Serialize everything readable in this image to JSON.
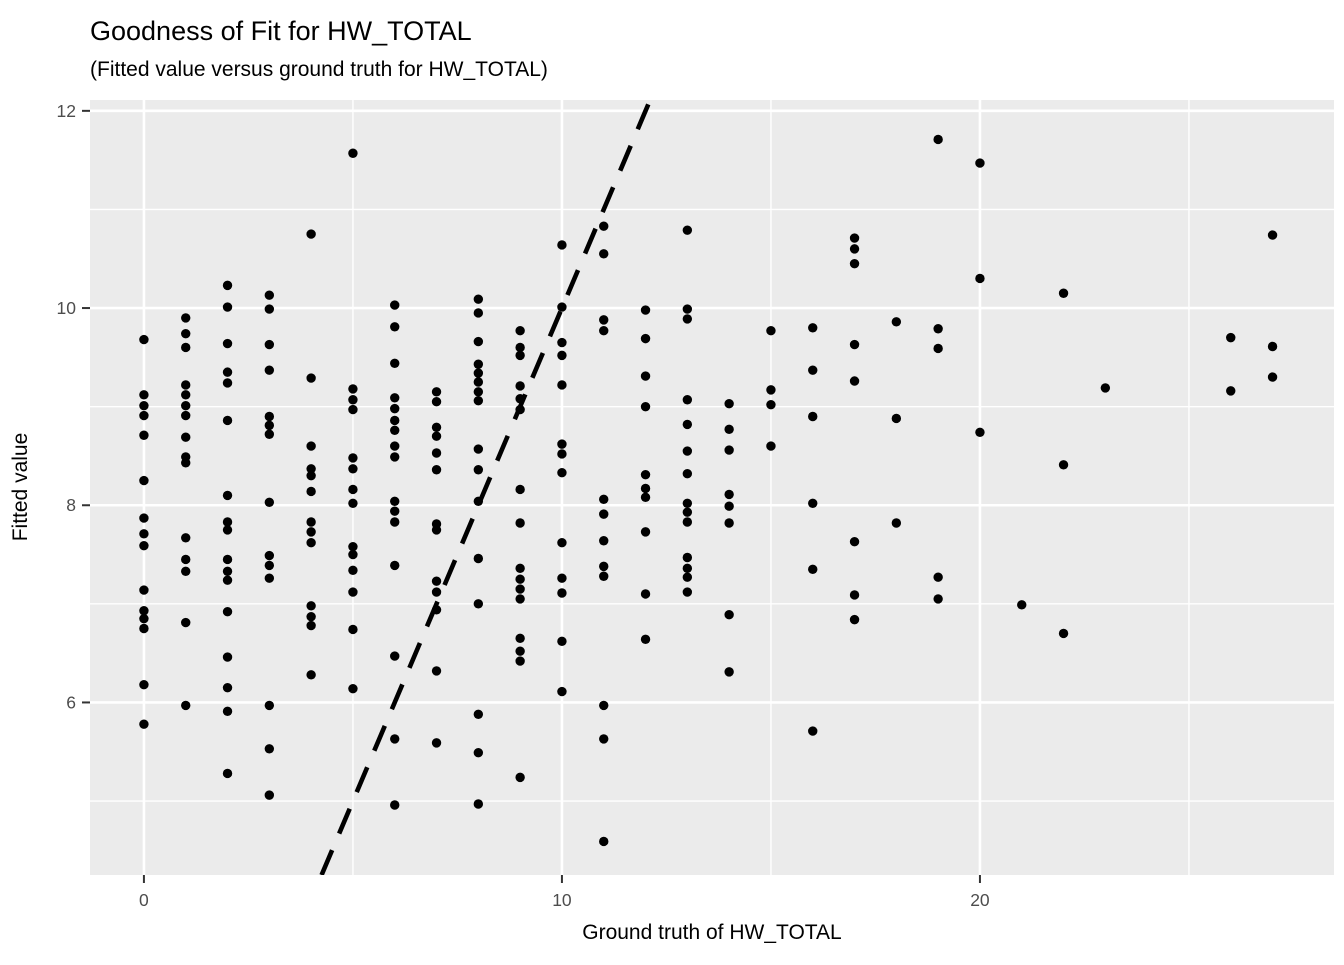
{
  "title": "Goodness of Fit for HW_TOTAL",
  "subtitle": "(Fitted value versus ground truth for HW_TOTAL)",
  "x_axis": {
    "label": "Ground truth of HW_TOTAL",
    "ticks": [
      0,
      10,
      20
    ],
    "minor_ticks": [
      5,
      15,
      25
    ],
    "range": [
      -1.29,
      28.47
    ]
  },
  "y_axis": {
    "label": "Fitted value",
    "ticks": [
      6,
      8,
      10,
      12
    ],
    "minor_ticks": [
      5,
      7,
      9,
      11
    ],
    "range": [
      4.25,
      12.11
    ]
  },
  "colors": {
    "panel_background": "#EBEBEB",
    "gridline": "#FFFFFF",
    "point": "#000000",
    "reference_line": "#000000",
    "tick_mark": "#333333",
    "tick_label": "#4d4d4d"
  },
  "chart_data": {
    "type": "scatter",
    "title": "Goodness of Fit for HW_TOTAL",
    "subtitle": "(Fitted value versus ground truth for HW_TOTAL)",
    "xlabel": "Ground truth of HW_TOTAL",
    "ylabel": "Fitted value",
    "xlim": [
      -1.29,
      28.47
    ],
    "ylim": [
      4.25,
      12.11
    ],
    "grid": "on",
    "legend": "none",
    "reference_line": {
      "equation": "y = x",
      "style": "dashed",
      "color": "#000000"
    },
    "points": [
      [
        0,
        9.68
      ],
      [
        0,
        9.12
      ],
      [
        0,
        9.01
      ],
      [
        0,
        8.91
      ],
      [
        0,
        8.71
      ],
      [
        0,
        8.25
      ],
      [
        0,
        7.87
      ],
      [
        0,
        7.71
      ],
      [
        0,
        7.59
      ],
      [
        0,
        7.14
      ],
      [
        0,
        6.93
      ],
      [
        0,
        6.85
      ],
      [
        0,
        6.75
      ],
      [
        0,
        6.18
      ],
      [
        0,
        5.78
      ],
      [
        1,
        9.9
      ],
      [
        1,
        9.74
      ],
      [
        1,
        9.6
      ],
      [
        1,
        9.22
      ],
      [
        1,
        9.12
      ],
      [
        1,
        9.01
      ],
      [
        1,
        8.91
      ],
      [
        1,
        8.69
      ],
      [
        1,
        8.49
      ],
      [
        1,
        8.43
      ],
      [
        1,
        7.67
      ],
      [
        1,
        7.45
      ],
      [
        1,
        7.33
      ],
      [
        1,
        6.81
      ],
      [
        1,
        5.97
      ],
      [
        2,
        10.23
      ],
      [
        2,
        10.01
      ],
      [
        2,
        9.64
      ],
      [
        2,
        9.35
      ],
      [
        2,
        9.24
      ],
      [
        2,
        8.86
      ],
      [
        2,
        8.1
      ],
      [
        2,
        7.83
      ],
      [
        2,
        7.75
      ],
      [
        2,
        7.45
      ],
      [
        2,
        7.33
      ],
      [
        2,
        7.24
      ],
      [
        2,
        6.92
      ],
      [
        2,
        6.46
      ],
      [
        2,
        6.15
      ],
      [
        2,
        5.91
      ],
      [
        2,
        5.28
      ],
      [
        3,
        10.13
      ],
      [
        3,
        9.99
      ],
      [
        3,
        9.63
      ],
      [
        3,
        9.37
      ],
      [
        3,
        8.9
      ],
      [
        3,
        8.81
      ],
      [
        3,
        8.72
      ],
      [
        3,
        8.03
      ],
      [
        3,
        7.49
      ],
      [
        3,
        7.39
      ],
      [
        3,
        7.26
      ],
      [
        3,
        5.97
      ],
      [
        3,
        5.53
      ],
      [
        3,
        5.06
      ],
      [
        4,
        10.75
      ],
      [
        4,
        9.29
      ],
      [
        4,
        8.6
      ],
      [
        4,
        8.37
      ],
      [
        4,
        8.3
      ],
      [
        4,
        8.14
      ],
      [
        4,
        7.83
      ],
      [
        4,
        7.73
      ],
      [
        4,
        7.62
      ],
      [
        4,
        6.98
      ],
      [
        4,
        6.87
      ],
      [
        4,
        6.78
      ],
      [
        4,
        6.28
      ],
      [
        5,
        11.57
      ],
      [
        5,
        9.18
      ],
      [
        5,
        9.07
      ],
      [
        5,
        8.97
      ],
      [
        5,
        8.48
      ],
      [
        5,
        8.37
      ],
      [
        5,
        8.16
      ],
      [
        5,
        8.02
      ],
      [
        5,
        7.58
      ],
      [
        5,
        7.5
      ],
      [
        5,
        7.34
      ],
      [
        5,
        7.12
      ],
      [
        5,
        6.74
      ],
      [
        5,
        6.14
      ],
      [
        6,
        10.03
      ],
      [
        6,
        9.81
      ],
      [
        6,
        9.44
      ],
      [
        6,
        9.09
      ],
      [
        6,
        8.98
      ],
      [
        6,
        8.86
      ],
      [
        6,
        8.76
      ],
      [
        6,
        8.6
      ],
      [
        6,
        8.49
      ],
      [
        6,
        8.04
      ],
      [
        6,
        7.94
      ],
      [
        6,
        7.83
      ],
      [
        6,
        7.39
      ],
      [
        6,
        6.47
      ],
      [
        6,
        5.63
      ],
      [
        6,
        4.96
      ],
      [
        7,
        9.15
      ],
      [
        7,
        9.05
      ],
      [
        7,
        8.79
      ],
      [
        7,
        8.7
      ],
      [
        7,
        8.53
      ],
      [
        7,
        8.36
      ],
      [
        7,
        7.81
      ],
      [
        7,
        7.75
      ],
      [
        7,
        7.23
      ],
      [
        7,
        7.12
      ],
      [
        7,
        6.94
      ],
      [
        7,
        6.32
      ],
      [
        7,
        5.59
      ],
      [
        8,
        10.09
      ],
      [
        8,
        9.95
      ],
      [
        8,
        9.66
      ],
      [
        8,
        9.43
      ],
      [
        8,
        9.34
      ],
      [
        8,
        9.25
      ],
      [
        8,
        9.15
      ],
      [
        8,
        9.06
      ],
      [
        8,
        8.57
      ],
      [
        8,
        8.36
      ],
      [
        8,
        8.04
      ],
      [
        8,
        7.46
      ],
      [
        8,
        7.0
      ],
      [
        8,
        5.88
      ],
      [
        8,
        5.49
      ],
      [
        8,
        4.97
      ],
      [
        9,
        9.77
      ],
      [
        9,
        9.6
      ],
      [
        9,
        9.52
      ],
      [
        9,
        9.21
      ],
      [
        9,
        9.08
      ],
      [
        9,
        8.97
      ],
      [
        9,
        8.16
      ],
      [
        9,
        7.82
      ],
      [
        9,
        7.36
      ],
      [
        9,
        7.25
      ],
      [
        9,
        7.15
      ],
      [
        9,
        7.05
      ],
      [
        9,
        6.65
      ],
      [
        9,
        6.52
      ],
      [
        9,
        6.42
      ],
      [
        9,
        5.24
      ],
      [
        10,
        10.64
      ],
      [
        10,
        10.01
      ],
      [
        10,
        9.65
      ],
      [
        10,
        9.52
      ],
      [
        10,
        9.22
      ],
      [
        10,
        8.62
      ],
      [
        10,
        8.52
      ],
      [
        10,
        8.33
      ],
      [
        10,
        7.62
      ],
      [
        10,
        7.26
      ],
      [
        10,
        7.11
      ],
      [
        10,
        6.62
      ],
      [
        10,
        6.11
      ],
      [
        11,
        10.83
      ],
      [
        11,
        10.55
      ],
      [
        11,
        9.88
      ],
      [
        11,
        9.77
      ],
      [
        11,
        8.06
      ],
      [
        11,
        7.91
      ],
      [
        11,
        7.64
      ],
      [
        11,
        7.38
      ],
      [
        11,
        7.28
      ],
      [
        11,
        5.97
      ],
      [
        11,
        5.63
      ],
      [
        11,
        4.59
      ],
      [
        12,
        9.98
      ],
      [
        12,
        9.69
      ],
      [
        12,
        9.31
      ],
      [
        12,
        9.0
      ],
      [
        12,
        8.31
      ],
      [
        12,
        8.17
      ],
      [
        12,
        8.08
      ],
      [
        12,
        7.73
      ],
      [
        12,
        7.1
      ],
      [
        12,
        6.64
      ],
      [
        13,
        10.79
      ],
      [
        13,
        9.99
      ],
      [
        13,
        9.89
      ],
      [
        13,
        9.07
      ],
      [
        13,
        8.82
      ],
      [
        13,
        8.55
      ],
      [
        13,
        8.32
      ],
      [
        13,
        8.02
      ],
      [
        13,
        7.93
      ],
      [
        13,
        7.83
      ],
      [
        13,
        7.47
      ],
      [
        13,
        7.36
      ],
      [
        13,
        7.27
      ],
      [
        13,
        7.12
      ],
      [
        14,
        9.03
      ],
      [
        14,
        8.77
      ],
      [
        14,
        8.56
      ],
      [
        14,
        8.11
      ],
      [
        14,
        7.99
      ],
      [
        14,
        7.82
      ],
      [
        14,
        6.89
      ],
      [
        14,
        6.31
      ],
      [
        15,
        9.77
      ],
      [
        15,
        9.17
      ],
      [
        15,
        9.02
      ],
      [
        15,
        8.6
      ],
      [
        16,
        9.8
      ],
      [
        16,
        9.37
      ],
      [
        16,
        8.9
      ],
      [
        16,
        8.02
      ],
      [
        16,
        7.35
      ],
      [
        16,
        5.71
      ],
      [
        17,
        10.71
      ],
      [
        17,
        10.6
      ],
      [
        17,
        10.45
      ],
      [
        17,
        9.63
      ],
      [
        17,
        9.26
      ],
      [
        17,
        7.63
      ],
      [
        17,
        7.09
      ],
      [
        17,
        6.84
      ],
      [
        18,
        9.86
      ],
      [
        18,
        8.88
      ],
      [
        18,
        7.82
      ],
      [
        19,
        11.71
      ],
      [
        19,
        9.79
      ],
      [
        19,
        9.59
      ],
      [
        19,
        7.27
      ],
      [
        19,
        7.05
      ],
      [
        20,
        11.47
      ],
      [
        20,
        10.3
      ],
      [
        20,
        8.74
      ],
      [
        21,
        6.99
      ],
      [
        22,
        10.15
      ],
      [
        22,
        8.41
      ],
      [
        22,
        6.7
      ],
      [
        23,
        9.19
      ],
      [
        26,
        9.7
      ],
      [
        26,
        9.16
      ],
      [
        27,
        10.74
      ],
      [
        27,
        9.61
      ],
      [
        27,
        9.3
      ]
    ]
  }
}
